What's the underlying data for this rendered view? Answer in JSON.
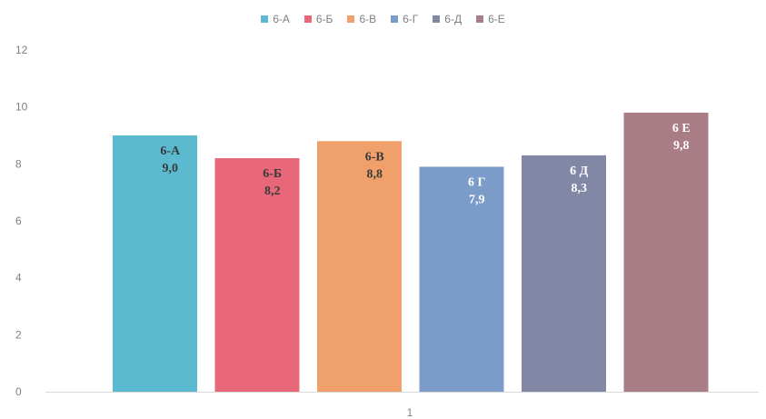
{
  "chart_data": {
    "type": "bar",
    "categories": [
      "1"
    ],
    "series": [
      {
        "name": "6-А",
        "values": [
          9.0
        ],
        "color": "#5bbad0",
        "label_lines": [
          "6-А",
          "9,0"
        ],
        "label_color": "#3a3a3a"
      },
      {
        "name": "6-Б",
        "values": [
          8.2
        ],
        "color": "#e8687a",
        "label_lines": [
          "6-Б",
          "8,2"
        ],
        "label_color": "#3a3a3a"
      },
      {
        "name": "6-В",
        "values": [
          8.8
        ],
        "color": "#f0a06b",
        "label_lines": [
          "6-В",
          "8,8"
        ],
        "label_color": "#3a3a3a"
      },
      {
        "name": "6-Г",
        "values": [
          7.9
        ],
        "color": "#7b9bc8",
        "label_lines": [
          "6 Г",
          "7,9"
        ],
        "label_color": "#ffffff"
      },
      {
        "name": "6-Д",
        "values": [
          8.3
        ],
        "color": "#8287a6",
        "label_lines": [
          "6 Д",
          "8,3"
        ],
        "label_color": "#ffffff"
      },
      {
        "name": "6-Е",
        "values": [
          9.8
        ],
        "color": "#a87d86",
        "label_lines": [
          "6 Е",
          "9,8"
        ],
        "label_color": "#ffffff"
      }
    ],
    "y_ticks": [
      "0",
      "2",
      "4",
      "6",
      "8",
      "10",
      "12"
    ],
    "ylim": [
      0,
      12
    ],
    "grid": false,
    "legend_position": "top-center"
  }
}
